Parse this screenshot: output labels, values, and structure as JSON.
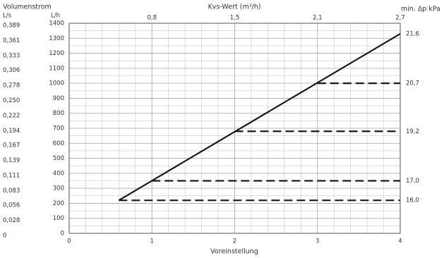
{
  "chart_data": {
    "type": "line",
    "ylabel": "Volumenstrom",
    "y_unit": "L/h",
    "y2_unit": "L/s",
    "xlabel": "Voreinstellung",
    "x2label": "Kvs-Wert (m³/h)",
    "dp_title": "min. Δp kPa",
    "xlim": [
      0,
      4
    ],
    "xticks": [
      0,
      1,
      2,
      3,
      4
    ],
    "x2ticks": [
      {
        "value": 1,
        "label": "0,8"
      },
      {
        "value": 2,
        "label": "1,5"
      },
      {
        "value": 3,
        "label": "2,1"
      },
      {
        "value": 4,
        "label": "2,7"
      }
    ],
    "ylim": [
      0,
      1400
    ],
    "yticks": [
      0,
      100,
      200,
      300,
      400,
      500,
      600,
      700,
      800,
      900,
      1000,
      1100,
      1200,
      1300,
      1400
    ],
    "y2lim": [
      0,
      0.3889
    ],
    "y2ticks": [
      0,
      {
        "value": 0.028,
        "label": "0,028"
      },
      {
        "value": 0.056,
        "label": "0,056"
      },
      {
        "value": 0.083,
        "label": "0,083"
      },
      {
        "value": 0.111,
        "label": "0,111"
      },
      {
        "value": 0.139,
        "label": "0,139"
      },
      {
        "value": 0.167,
        "label": "0,167"
      },
      {
        "value": 0.194,
        "label": "0,194"
      },
      {
        "value": 0.222,
        "label": "0,222"
      },
      {
        "value": 0.25,
        "label": "0,250"
      },
      {
        "value": 0.278,
        "label": "0,278"
      },
      {
        "value": 0.306,
        "label": "0,306"
      },
      {
        "value": 0.333,
        "label": "0,333"
      },
      {
        "value": 0.361,
        "label": "0,361"
      },
      {
        "value": 0.389,
        "label": "0,389"
      }
    ],
    "dp_labels": [
      {
        "value": 1330,
        "label": "21,6"
      },
      {
        "value": 1000,
        "label": "20,7"
      },
      {
        "value": 680,
        "label": "19,2"
      },
      {
        "value": 350,
        "label": "17,0"
      },
      {
        "value": 220,
        "label": "16,0"
      }
    ],
    "grid": true,
    "minor_grid": {
      "x": 5,
      "y": 2
    },
    "series": [
      {
        "color": "#1a1a1a",
        "dashed": false,
        "x": [
          0.6,
          4
        ],
        "values": [
          220,
          1330
        ]
      },
      {
        "color": "#1a1a1a",
        "dashed": true,
        "x": [
          0.6,
          4
        ],
        "values": [
          220,
          220
        ]
      },
      {
        "color": "#1a1a1a",
        "dashed": true,
        "x": [
          1,
          4
        ],
        "values": [
          350,
          350
        ]
      },
      {
        "color": "#1a1a1a",
        "dashed": true,
        "x": [
          2,
          4
        ],
        "values": [
          680,
          680
        ]
      },
      {
        "color": "#1a1a1a",
        "dashed": true,
        "x": [
          3,
          4
        ],
        "values": [
          1000,
          1000
        ]
      }
    ]
  }
}
